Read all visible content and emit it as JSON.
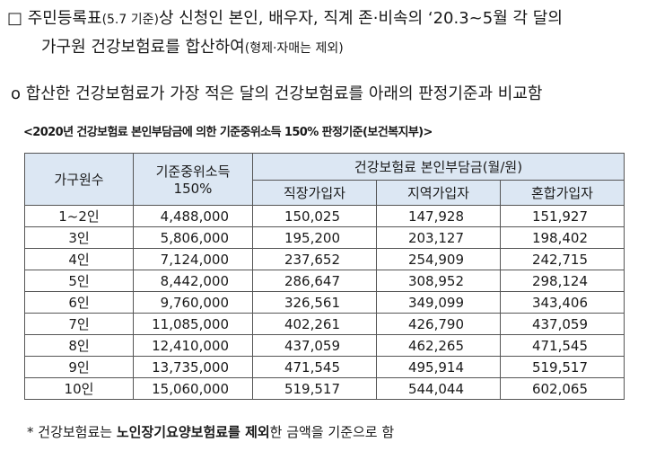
{
  "intro": {
    "line1_bullet": "□",
    "line1_a": "주민등록표",
    "line1_note": "(5.7 기준)",
    "line1_b": "상 신청인 본인, 배우자, 직계 존·비속의 ‘20.3~5월 각 달의",
    "line2_a": "가구원 건강보험료를 합산하여",
    "line2_note": "(형제·자매는 제외)",
    "line3_bullet": "o",
    "line3": "합산한 건강보험료가 가장 적은 달의 건강보험료를 아래의 판정기준과 비교함"
  },
  "table_title": "<2020년 건강보험료 본인부담금에 의한 기준중위소득 150% 판정기준(보건복지부)>",
  "table": {
    "headers": {
      "household": "가구원수",
      "median_line1": "기준중위소득",
      "median_line2": "150%",
      "premium_group": "건강보험료 본인부담금(월/원)",
      "employee": "직장가입자",
      "regional": "지역가입자",
      "mixed": "혼합가입자"
    },
    "rows": [
      [
        "1~2인",
        "4,488,000",
        "150,025",
        "147,928",
        "151,927"
      ],
      [
        "3인",
        "5,806,000",
        "195,200",
        "203,127",
        "198,402"
      ],
      [
        "4인",
        "7,124,000",
        "237,652",
        "254,909",
        "242,715"
      ],
      [
        "5인",
        "8,442,000",
        "286,647",
        "308,952",
        "298,124"
      ],
      [
        "6인",
        "9,760,000",
        "326,561",
        "349,099",
        "343,406"
      ],
      [
        "7인",
        "11,085,000",
        "402,261",
        "426,790",
        "437,059"
      ],
      [
        "8인",
        "12,410,000",
        "437,059",
        "462,265",
        "471,545"
      ],
      [
        "9인",
        "13,735,000",
        "471,545",
        "495,914",
        "519,517"
      ],
      [
        "10인",
        "15,060,000",
        "519,517",
        "544,044",
        "602,065"
      ]
    ]
  },
  "footnote": {
    "a": "* 건강보험료는 ",
    "bold": "노인장기요양보험료를 제외",
    "b": "한 금액을 기준으로 함"
  }
}
